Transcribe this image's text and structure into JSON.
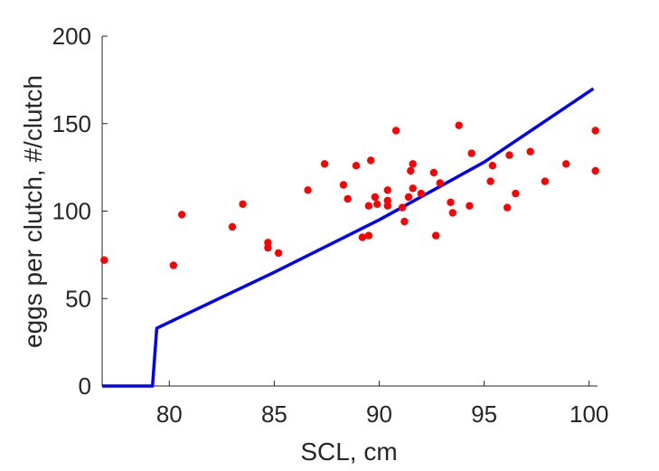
{
  "chart_data": {
    "type": "scatter",
    "xlabel": "SCL, cm",
    "ylabel": "eggs per clutch, #/clutch",
    "xlim": [
      76.8,
      100.4
    ],
    "ylim": [
      0,
      200
    ],
    "xticks": [
      "80",
      "85",
      "90",
      "95",
      "100"
    ],
    "xtick_values": [
      80,
      85,
      90,
      95,
      100
    ],
    "yticks": [
      "0",
      "50",
      "100",
      "150",
      "200"
    ],
    "ytick_values": [
      0,
      50,
      100,
      150,
      200
    ],
    "grid": false,
    "series": [
      {
        "type": "scatter",
        "color": "#ff0000",
        "points": [
          [
            76.9,
            72
          ],
          [
            80.2,
            69
          ],
          [
            80.6,
            98
          ],
          [
            83.0,
            91
          ],
          [
            83.5,
            104
          ],
          [
            84.7,
            82
          ],
          [
            84.7,
            79
          ],
          [
            85.2,
            76
          ],
          [
            86.6,
            112
          ],
          [
            87.4,
            127
          ],
          [
            88.3,
            115
          ],
          [
            88.5,
            107
          ],
          [
            88.9,
            126
          ],
          [
            89.2,
            85
          ],
          [
            89.5,
            86
          ],
          [
            89.6,
            129
          ],
          [
            89.5,
            103
          ],
          [
            89.8,
            108
          ],
          [
            89.9,
            104
          ],
          [
            90.4,
            112
          ],
          [
            90.4,
            106
          ],
          [
            90.4,
            103
          ],
          [
            90.8,
            146
          ],
          [
            91.1,
            102
          ],
          [
            91.2,
            94
          ],
          [
            91.4,
            108
          ],
          [
            91.5,
            123
          ],
          [
            91.6,
            113
          ],
          [
            91.6,
            127
          ],
          [
            92.0,
            110
          ],
          [
            92.6,
            122
          ],
          [
            92.7,
            86
          ],
          [
            92.9,
            116
          ],
          [
            93.4,
            105
          ],
          [
            93.5,
            99
          ],
          [
            93.8,
            149
          ],
          [
            94.3,
            103
          ],
          [
            94.4,
            133
          ],
          [
            95.3,
            117
          ],
          [
            95.4,
            126
          ],
          [
            96.1,
            102
          ],
          [
            96.2,
            132
          ],
          [
            96.5,
            110
          ],
          [
            97.2,
            134
          ],
          [
            97.9,
            117
          ],
          [
            98.9,
            127
          ],
          [
            100.3,
            146
          ],
          [
            100.3,
            123
          ]
        ]
      },
      {
        "type": "line",
        "color": "#0000ff",
        "points": [
          [
            76.8,
            0
          ],
          [
            79.2,
            0
          ],
          [
            79.4,
            33
          ],
          [
            85.0,
            65
          ],
          [
            90.0,
            95
          ],
          [
            95.0,
            128
          ],
          [
            100.2,
            170
          ]
        ]
      }
    ]
  }
}
